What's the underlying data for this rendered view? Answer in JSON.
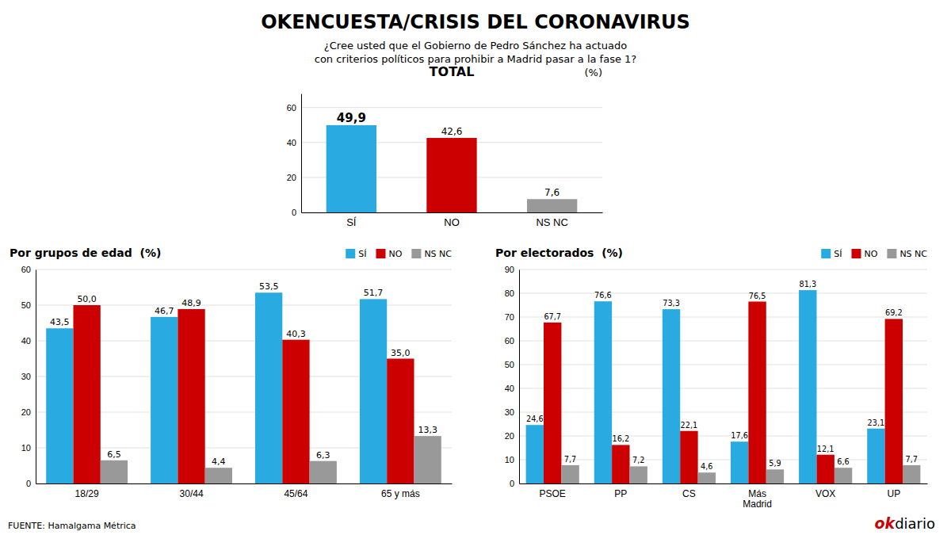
{
  "title": "OKENCUESTA/CRISIS DEL CORONAVIRUS",
  "subtitle": "¿Cree usted que el Gobierno de Pedro Sánchez ha actuado\ncon criterios políticos para prohibir a Madrid pasar a la fase 1?",
  "annotations": [
    {
      "text": "FUENTE: Hamalgama Métrica"
    },
    {
      "text": "ok",
      "color": "#CC0000"
    },
    {
      "text": "diario"
    }
  ],
  "chart_data": [
    {
      "type": "bar",
      "title": "TOTAL",
      "annotations": [
        "(%)"
      ],
      "categories": [
        "SÍ",
        "NO",
        "NS NC"
      ],
      "values": [
        49.9,
        42.6,
        7.6
      ],
      "value_labels": [
        "49,9",
        "42,6",
        "7,6"
      ],
      "colors": [
        "#29ABE2",
        "#CC0000",
        "#999999"
      ],
      "ylim": [
        0,
        68
      ],
      "yticks": [
        0,
        20,
        40,
        60
      ],
      "grid": true,
      "data_labels": true
    },
    {
      "type": "bar",
      "title": "Por grupos de edad  (%)",
      "categories": [
        "18/29",
        "30/44",
        "45/64",
        "65 y más"
      ],
      "series": [
        {
          "name": "SÍ",
          "color": "#29ABE2",
          "values": [
            43.5,
            46.7,
            53.5,
            51.7
          ],
          "value_labels": [
            "43,5",
            "46,7",
            "53,5",
            "51,7"
          ]
        },
        {
          "name": "NO",
          "color": "#CC0000",
          "values": [
            50.0,
            48.9,
            40.3,
            35.0
          ],
          "value_labels": [
            "50,0",
            "48,9",
            "40,3",
            "35,0"
          ]
        },
        {
          "name": "NS NC",
          "color": "#999999",
          "values": [
            6.5,
            4.4,
            6.3,
            13.3
          ],
          "value_labels": [
            "6,5",
            "4,4",
            "6,3",
            "13,3"
          ]
        }
      ],
      "ylim": [
        0,
        60
      ],
      "yticks": [
        0,
        10,
        20,
        30,
        40,
        50,
        60
      ],
      "grid": true,
      "data_labels": true,
      "legend": "upper right"
    },
    {
      "type": "bar",
      "title": "Por electorados  (%)",
      "categories": [
        "PSOE",
        "PP",
        "CS",
        "Más\nMadrid",
        "VOX",
        "UP"
      ],
      "series": [
        {
          "name": "SÍ",
          "color": "#29ABE2",
          "values": [
            24.6,
            76.6,
            73.3,
            17.6,
            81.3,
            23.1
          ],
          "value_labels": [
            "24,6",
            "76,6",
            "73,3",
            "17,6",
            "81,3",
            "23,1"
          ]
        },
        {
          "name": "NO",
          "color": "#CC0000",
          "values": [
            67.7,
            16.2,
            22.1,
            76.5,
            12.1,
            69.2
          ],
          "value_labels": [
            "67,7",
            "16,2",
            "22,1",
            "76,5",
            "12,1",
            "69,2"
          ]
        },
        {
          "name": "NS NC",
          "color": "#999999",
          "values": [
            7.7,
            7.2,
            4.6,
            5.9,
            6.6,
            7.7
          ],
          "value_labels": [
            "7,7",
            "7,2",
            "4,6",
            "5,9",
            "6,6",
            "7,7"
          ]
        }
      ],
      "ylim": [
        0,
        90
      ],
      "yticks": [
        0,
        10,
        20,
        30,
        40,
        50,
        60,
        70,
        80,
        90
      ],
      "grid": true,
      "data_labels": true,
      "legend": "upper right"
    }
  ]
}
